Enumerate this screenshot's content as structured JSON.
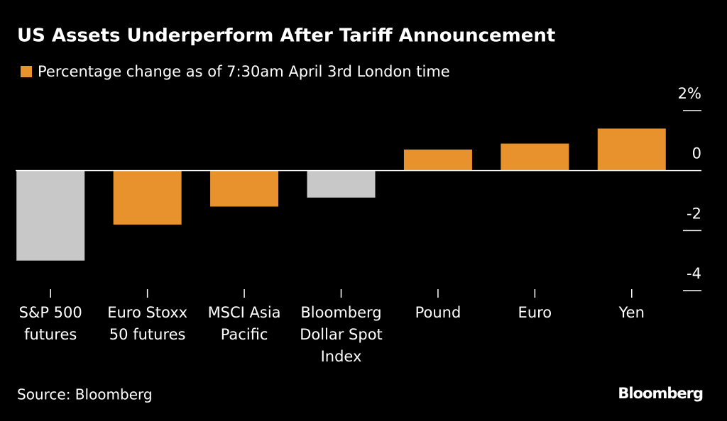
{
  "chart_data": {
    "type": "bar",
    "title": "US Assets Underperform After Tariff Announcement",
    "legend": {
      "label": "Percentage change as of 7:30am April 3rd London time",
      "color": "#e8922e"
    },
    "categories": [
      [
        "S&P 500",
        "futures"
      ],
      [
        "Euro Stoxx",
        "50 futures"
      ],
      [
        "MSCI Asia",
        "Pacific"
      ],
      [
        "Bloomberg",
        "Dollar Spot",
        "Index"
      ],
      [
        "Pound"
      ],
      [
        "Euro"
      ],
      [
        "Yen"
      ]
    ],
    "values": [
      -3.0,
      -1.8,
      -1.2,
      -0.9,
      0.7,
      0.9,
      1.4
    ],
    "colors": [
      "#c8c8c8",
      "#e8922e",
      "#e8922e",
      "#c8c8c8",
      "#e8922e",
      "#e8922e",
      "#e8922e"
    ],
    "ylim": [
      -4,
      2
    ],
    "yticks": [
      {
        "value": 2,
        "label": "2%"
      },
      0,
      -2,
      -4
    ],
    "source": "Source: Bloomberg",
    "brand": "Bloomberg"
  }
}
